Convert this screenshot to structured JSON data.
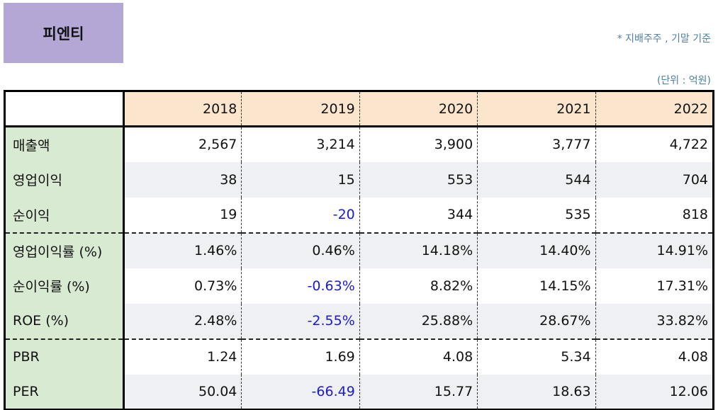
{
  "title": "피엔티",
  "note": "* 지배주주 , 기말 기준",
  "unit": "(단위 : 억원)",
  "header": {
    "corner": "",
    "years": [
      "2018",
      "2019",
      "2020",
      "2021",
      "2022"
    ]
  },
  "rows": [
    {
      "label": "매출액",
      "values": [
        "2,567",
        "3,214",
        "3,900",
        "3,777",
        "4,722"
      ]
    },
    {
      "label": "영업이익",
      "values": [
        "38",
        "15",
        "553",
        "544",
        "704"
      ]
    },
    {
      "label": "순이익",
      "values": [
        "19",
        "-20",
        "344",
        "535",
        "818"
      ]
    },
    {
      "label": "영업이익률 (%)",
      "values": [
        "1.46%",
        "0.46%",
        "14.18%",
        "14.40%",
        "14.91%"
      ]
    },
    {
      "label": "순이익률 (%)",
      "values": [
        "0.73%",
        "-0.63%",
        "8.82%",
        "14.15%",
        "17.31%"
      ]
    },
    {
      "label": "ROE (%)",
      "values": [
        "2.48%",
        "-2.55%",
        "25.88%",
        "28.67%",
        "33.82%"
      ]
    },
    {
      "label": "PBR",
      "values": [
        "1.24",
        "1.69",
        "4.08",
        "5.34",
        "4.08"
      ]
    },
    {
      "label": "PER",
      "values": [
        "50.04",
        "-66.49",
        "15.77",
        "18.63",
        "12.06"
      ]
    }
  ],
  "colors": {
    "title_bg": "#b4a7d6",
    "header_bg": "#fce5cd",
    "label_bg": "#d9ead3",
    "alt_row_bg": "#eef0f3",
    "negative": "#1a1ad6",
    "note": "#4f7f9f"
  }
}
